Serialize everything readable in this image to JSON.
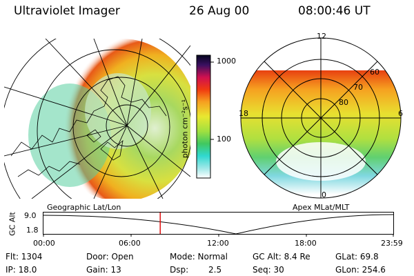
{
  "header": {
    "instrument": "Ultraviolet Imager",
    "date": "26 Aug 00",
    "time": "08:00:46 UT"
  },
  "colorbar": {
    "label": "photon cm⁻²s⁻¹",
    "ticks": [
      "1000",
      "100"
    ]
  },
  "geo_panel": {
    "caption": "Geographic Lat/Lon"
  },
  "polar_panel": {
    "caption": "Apex MLat/MLT",
    "mlt_labels": {
      "top": "12",
      "left": "18",
      "right": "6",
      "bottom": "0"
    },
    "lat_labels": [
      "60",
      "70",
      "80"
    ]
  },
  "altitude_plot": {
    "ylabel": "GC Alt",
    "yticks": [
      "9.0",
      "1.8"
    ],
    "xticks": [
      "00:00",
      "06:00",
      "12:00",
      "18:00",
      "23:59"
    ],
    "current_time_hours": 8.01,
    "marker_color": "#e01010"
  },
  "info": {
    "flt": "Flt: 1304",
    "ip": "IP: 18.0",
    "door": "Door: Open",
    "gain": "Gain: 13",
    "mode": "Mode: Normal",
    "dsp_label": "Dsp:",
    "dsp_value": "2.5",
    "gcalt": "GC Alt: 8.4 Re",
    "seq": "Seq: 30",
    "glat": "GLat:  69.8",
    "glon": "GLon: 254.6"
  }
}
